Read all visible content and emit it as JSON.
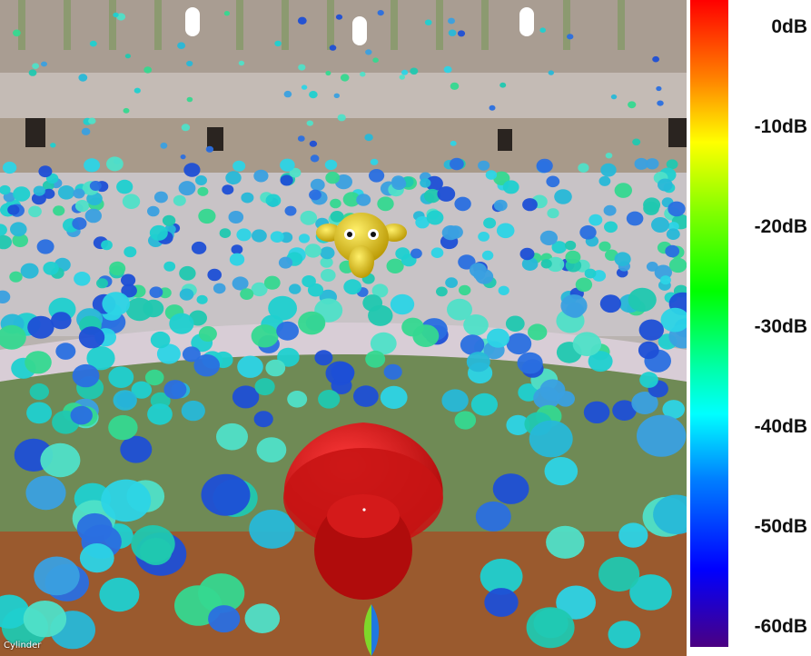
{
  "viewport": {
    "object_label": "Cylinder",
    "scene_description_tokens": {
      "monkey": "monkey-head-icon",
      "speaker": "speaker-cone-icon"
    },
    "colors": {
      "floor_brown": "#9a5a2e",
      "arena_green": "#6f8a55",
      "wall_stone": "#b5aca6",
      "speaker_red": "#d01818",
      "monkey_yellow": "#e0c000"
    }
  },
  "legend": {
    "ticks": [
      "0dB",
      "-10dB",
      "-20dB",
      "-30dB",
      "-40dB",
      "-50dB",
      "-60dB"
    ],
    "colors": [
      "#ff0000",
      "#ff8000",
      "#ffff00",
      "#00ff00",
      "#00ffff",
      "#0000ff",
      "#4b0082"
    ]
  }
}
